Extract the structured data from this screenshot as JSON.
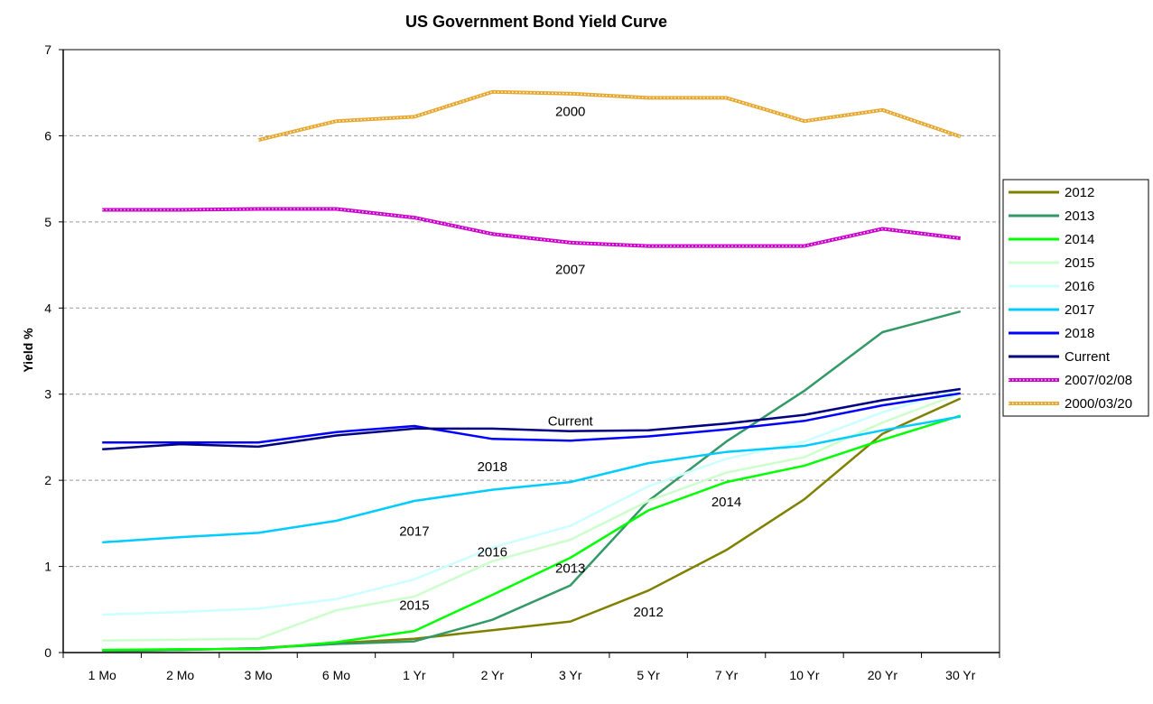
{
  "chart_data": {
    "type": "line",
    "title": "US Government Bond Yield Curve",
    "xlabel": "",
    "ylabel": "Yield %",
    "ylim": [
      0,
      7
    ],
    "yticks": [
      "0",
      "1",
      "2",
      "3",
      "4",
      "5",
      "6",
      "7"
    ],
    "grid": "horizontal dashed",
    "legend_position": "right",
    "categories": [
      "1 Mo",
      "2 Mo",
      "3 Mo",
      "6 Mo",
      "1 Yr",
      "2 Yr",
      "3 Yr",
      "5 Yr",
      "7 Yr",
      "10 Yr",
      "20 Yr",
      "30 Yr"
    ],
    "series": [
      {
        "name": "2012",
        "color": "#808000",
        "style": "solid",
        "values": [
          0.02,
          0.03,
          0.05,
          0.11,
          0.16,
          0.26,
          0.36,
          0.72,
          1.19,
          1.78,
          2.54,
          2.95
        ]
      },
      {
        "name": "2013",
        "color": "#339966",
        "style": "solid",
        "values": [
          0.02,
          0.03,
          0.05,
          0.1,
          0.13,
          0.38,
          0.78,
          1.76,
          2.45,
          3.04,
          3.72,
          3.96
        ]
      },
      {
        "name": "2014",
        "color": "#00ff00",
        "style": "solid",
        "values": [
          0.03,
          0.04,
          0.04,
          0.12,
          0.25,
          0.67,
          1.1,
          1.65,
          1.98,
          2.17,
          2.47,
          2.75
        ]
      },
      {
        "name": "2015",
        "color": "#ccffcc",
        "style": "solid",
        "values": [
          0.14,
          0.15,
          0.16,
          0.49,
          0.65,
          1.06,
          1.31,
          1.76,
          2.09,
          2.27,
          2.67,
          3.01
        ]
      },
      {
        "name": "2016",
        "color": "#ccffff",
        "style": "solid",
        "values": [
          0.44,
          0.47,
          0.51,
          0.62,
          0.85,
          1.22,
          1.47,
          1.93,
          2.25,
          2.45,
          2.79,
          3.06
        ]
      },
      {
        "name": "2017",
        "color": "#00ccff",
        "style": "solid",
        "values": [
          1.28,
          1.34,
          1.39,
          1.53,
          1.76,
          1.89,
          1.98,
          2.2,
          2.33,
          2.4,
          2.58,
          2.74
        ]
      },
      {
        "name": "2018",
        "color": "#0000ff",
        "style": "solid",
        "values": [
          2.44,
          2.44,
          2.44,
          2.56,
          2.63,
          2.48,
          2.46,
          2.51,
          2.59,
          2.69,
          2.87,
          3.01
        ]
      },
      {
        "name": "Current",
        "color": "#000080",
        "style": "solid",
        "values": [
          2.36,
          2.42,
          2.39,
          2.52,
          2.6,
          2.6,
          2.57,
          2.58,
          2.66,
          2.76,
          2.93,
          3.06
        ]
      },
      {
        "name": "2007/02/08",
        "color": "#cc00cc",
        "style": "dotted",
        "values": [
          5.14,
          5.14,
          5.15,
          5.15,
          5.05,
          4.86,
          4.76,
          4.72,
          4.72,
          4.72,
          4.92,
          4.81
        ]
      },
      {
        "name": "2000/03/20",
        "color": "#e6a830",
        "style": "dotted",
        "values": [
          null,
          null,
          5.95,
          6.17,
          6.22,
          6.51,
          6.49,
          6.44,
          6.44,
          6.17,
          6.3,
          5.99
        ]
      }
    ],
    "annotations": [
      {
        "text": "2000",
        "at_category": 6,
        "y_value": 6.28
      },
      {
        "text": "2007",
        "at_category": 6,
        "y_value": 4.45
      },
      {
        "text": "Current",
        "at_category": 6,
        "y_value": 2.69
      },
      {
        "text": "2018",
        "at_category": 5,
        "y_value": 2.16
      },
      {
        "text": "2014",
        "at_category": 8,
        "y_value": 1.75
      },
      {
        "text": "2017",
        "at_category": 4,
        "y_value": 1.41
      },
      {
        "text": "2016",
        "at_category": 5,
        "y_value": 1.17
      },
      {
        "text": "2013",
        "at_category": 6,
        "y_value": 0.98
      },
      {
        "text": "2015",
        "at_category": 4,
        "y_value": 0.55
      },
      {
        "text": "2012",
        "at_category": 7,
        "y_value": 0.47
      }
    ]
  }
}
